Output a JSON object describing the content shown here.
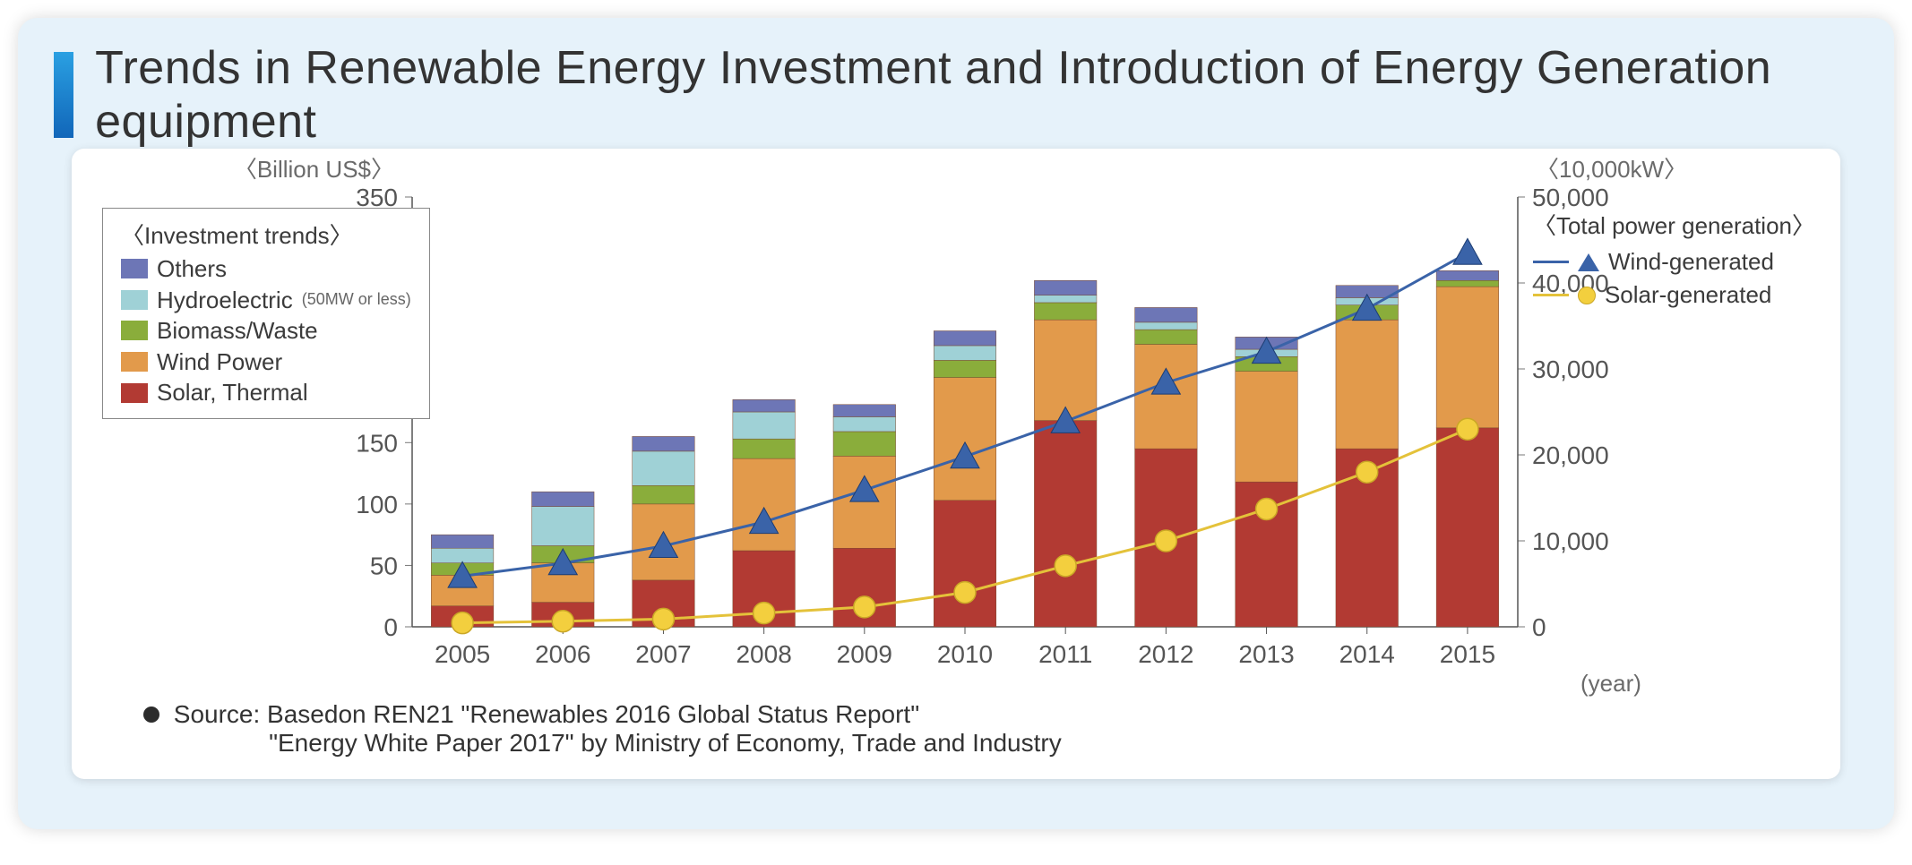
{
  "title": "Trends in Renewable Energy Investment and Introduction of Energy Generation equipment",
  "card_bg": "#e6f2fa",
  "chart_bg": "#ffffff",
  "chart": {
    "type": "stacked-bar-with-dual-line",
    "years": [
      "2005",
      "2006",
      "2007",
      "2008",
      "2009",
      "2010",
      "2011",
      "2012",
      "2013",
      "2014",
      "2015"
    ],
    "bar_series_order": [
      "solar_thermal",
      "wind_power",
      "biomass_waste",
      "hydroelectric",
      "others"
    ],
    "bar_series_labels": {
      "solar_thermal": "Solar, Thermal",
      "wind_power": "Wind Power",
      "biomass_waste": "Biomass/Waste",
      "hydroelectric": "Hydroelectric",
      "hydro_suffix": "(50MW or less)",
      "others": "Others"
    },
    "bar_series_colors": {
      "solar_thermal": "#b23a33",
      "wind_power": "#e29a4b",
      "biomass_waste": "#8aad3b",
      "hydroelectric": "#9fd1d6",
      "others": "#6d76b6"
    },
    "bar_values": {
      "solar_thermal": [
        17,
        20,
        38,
        62,
        64,
        103,
        168,
        145,
        118,
        145,
        162
      ],
      "wind_power": [
        25,
        32,
        62,
        75,
        75,
        100,
        82,
        85,
        90,
        105,
        115
      ],
      "biomass_waste": [
        10,
        14,
        15,
        16,
        20,
        14,
        14,
        12,
        12,
        12,
        5
      ],
      "hydroelectric": [
        12,
        32,
        28,
        22,
        12,
        12,
        6,
        6,
        6,
        6,
        0
      ],
      "others": [
        11,
        12,
        12,
        10,
        10,
        12,
        12,
        12,
        10,
        10,
        8
      ]
    },
    "line_series": {
      "wind_generated": {
        "label": "Wind-generated",
        "color": "#3a63a8",
        "marker": "triangle",
        "values": [
          5900,
          7400,
          9400,
          12200,
          15900,
          19800,
          23900,
          28400,
          32000,
          37000,
          43500
        ]
      },
      "solar_generated": {
        "label": "Solar-generated",
        "color": "#e4c23a",
        "marker": "circle",
        "values": [
          450,
          650,
          900,
          1600,
          2300,
          4000,
          7100,
          10000,
          13700,
          18000,
          23000
        ]
      }
    },
    "left_axis": {
      "title": "〈Billion US$〉",
      "min": 0,
      "max": 350,
      "step": 50
    },
    "right_axis": {
      "title": "〈10,000kW〉",
      "min": 0,
      "max": 50000,
      "step": 10000
    },
    "x_axis_title": "(year)",
    "bar_width_ratio": 0.62,
    "marker_size": 16,
    "line_width": 3,
    "grid": false
  },
  "legend_left_header": "〈Investment trends〉",
  "legend_right_header": "〈Total power generation〉",
  "source_line1": "Source: Basedon REN21 \"Renewables 2016 Global Status Report\"",
  "source_line2": "\"Energy White Paper 2017\" by Ministry of Economy, Trade and Industry"
}
